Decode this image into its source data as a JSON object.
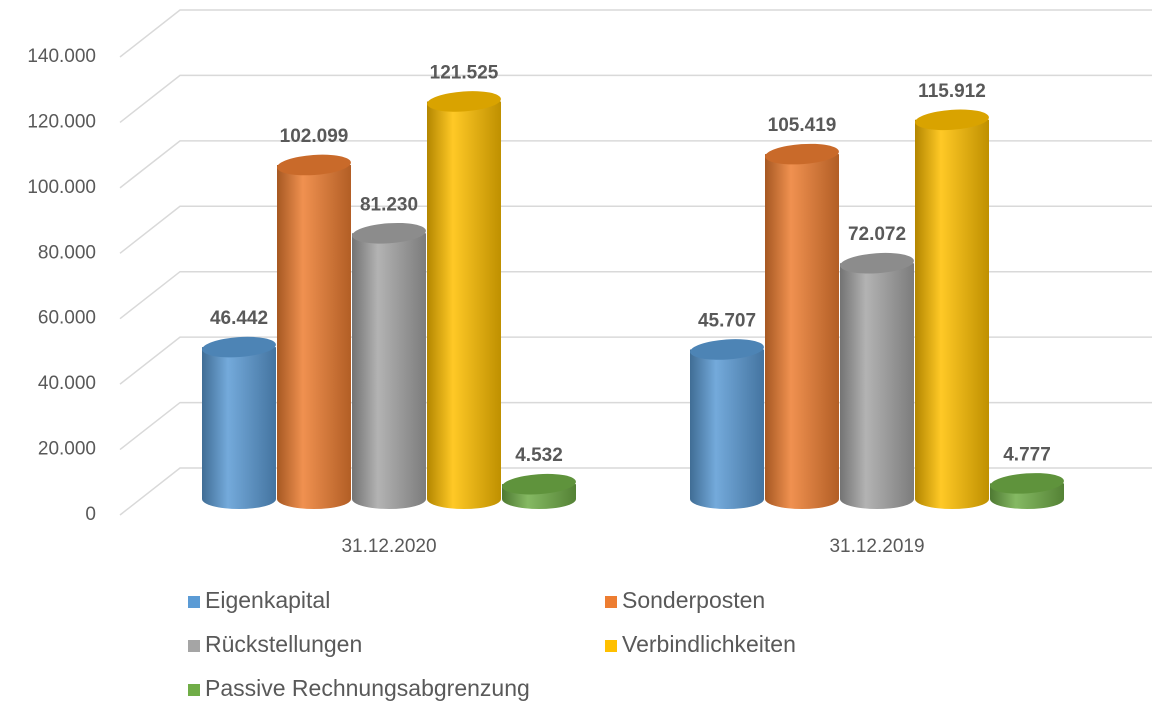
{
  "chart_data": {
    "type": "bar3d",
    "categories": [
      "31.12.2020",
      "31.12.2019"
    ],
    "series": [
      {
        "name": "Eigenkapital",
        "color": "#5b9bd5",
        "values": [
          46442,
          45707
        ],
        "value_labels": [
          "46.442",
          "45.707"
        ]
      },
      {
        "name": "Sonderposten",
        "color": "#ed7d31",
        "values": [
          102099,
          105419
        ],
        "value_labels": [
          "102.099",
          "105.419"
        ]
      },
      {
        "name": "Rückstellungen",
        "color": "#a5a5a5",
        "values": [
          81230,
          72072
        ],
        "value_labels": [
          "81.230",
          "72.072"
        ]
      },
      {
        "name": "Verbindlichkeiten",
        "color": "#ffc000",
        "values": [
          121525,
          115912
        ],
        "value_labels": [
          "121.525",
          "115.912"
        ]
      },
      {
        "name": "Passive Rechnungsabgrenzung",
        "color": "#70ad47",
        "values": [
          4532,
          4777
        ],
        "value_labels": [
          "4.532",
          "4.777"
        ]
      }
    ],
    "ylim": [
      0,
      140000
    ],
    "yticks": [
      0,
      {
        "value": 20000,
        "label": "20.000"
      },
      {
        "value": 40000,
        "label": "40.000"
      },
      {
        "value": 60000,
        "label": "60.000"
      },
      {
        "value": 80000,
        "label": "80.000"
      },
      {
        "value": 100000,
        "label": "100.000"
      },
      {
        "value": 120000,
        "label": "120.000"
      },
      {
        "value": 140000,
        "label": "140.000"
      }
    ],
    "grid": true,
    "legend": "bottom"
  }
}
